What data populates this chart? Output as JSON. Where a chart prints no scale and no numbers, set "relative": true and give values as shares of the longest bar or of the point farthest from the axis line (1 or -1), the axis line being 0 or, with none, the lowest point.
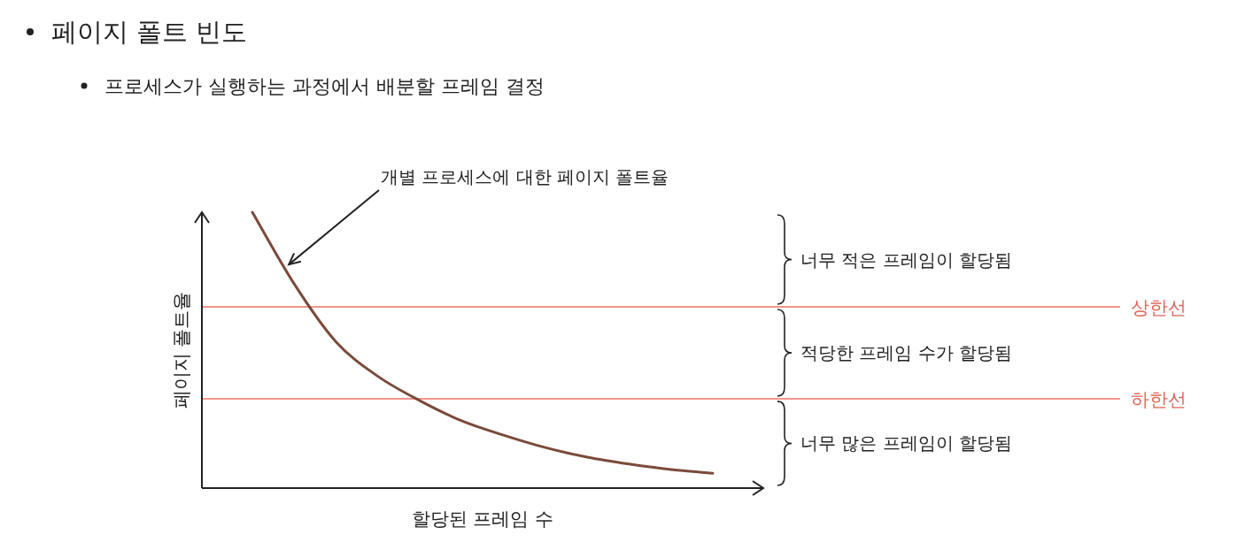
{
  "chart_data": {
    "type": "line",
    "title": "페이지 폴트 빈도",
    "subtitle": "프로세스가 실행하는 과정에서 배분할 프레임 결정",
    "xlabel": "할당된 프레임 수",
    "ylabel": "페이지 폴트율",
    "relative": true,
    "categories": [
      null,
      null,
      null,
      null,
      null,
      null,
      null,
      null,
      null,
      null,
      null,
      null
    ],
    "series": [
      {
        "color": "#7a4a3a",
        "values": [
          1,
          0.74,
          0.53,
          0.405,
          0.317,
          0.244,
          0.192,
          0.147,
          0.112,
          0.087,
          0.067,
          0.054
        ]
      }
    ],
    "ref_lines": [
      {
        "axis": "y",
        "value": 0.657,
        "label": "상한선",
        "color": "#f2958a"
      },
      {
        "axis": "y",
        "value": 0.324,
        "label": "하한선",
        "color": "#f2958a"
      }
    ],
    "annotations": [
      "개별 프로세스에 대한 페이지 폴트율",
      "너무 적은 프레임이 할당됨",
      "적당한 프레임 수가 할당됨",
      "너무 많은 프레임이 할당됨"
    ]
  }
}
